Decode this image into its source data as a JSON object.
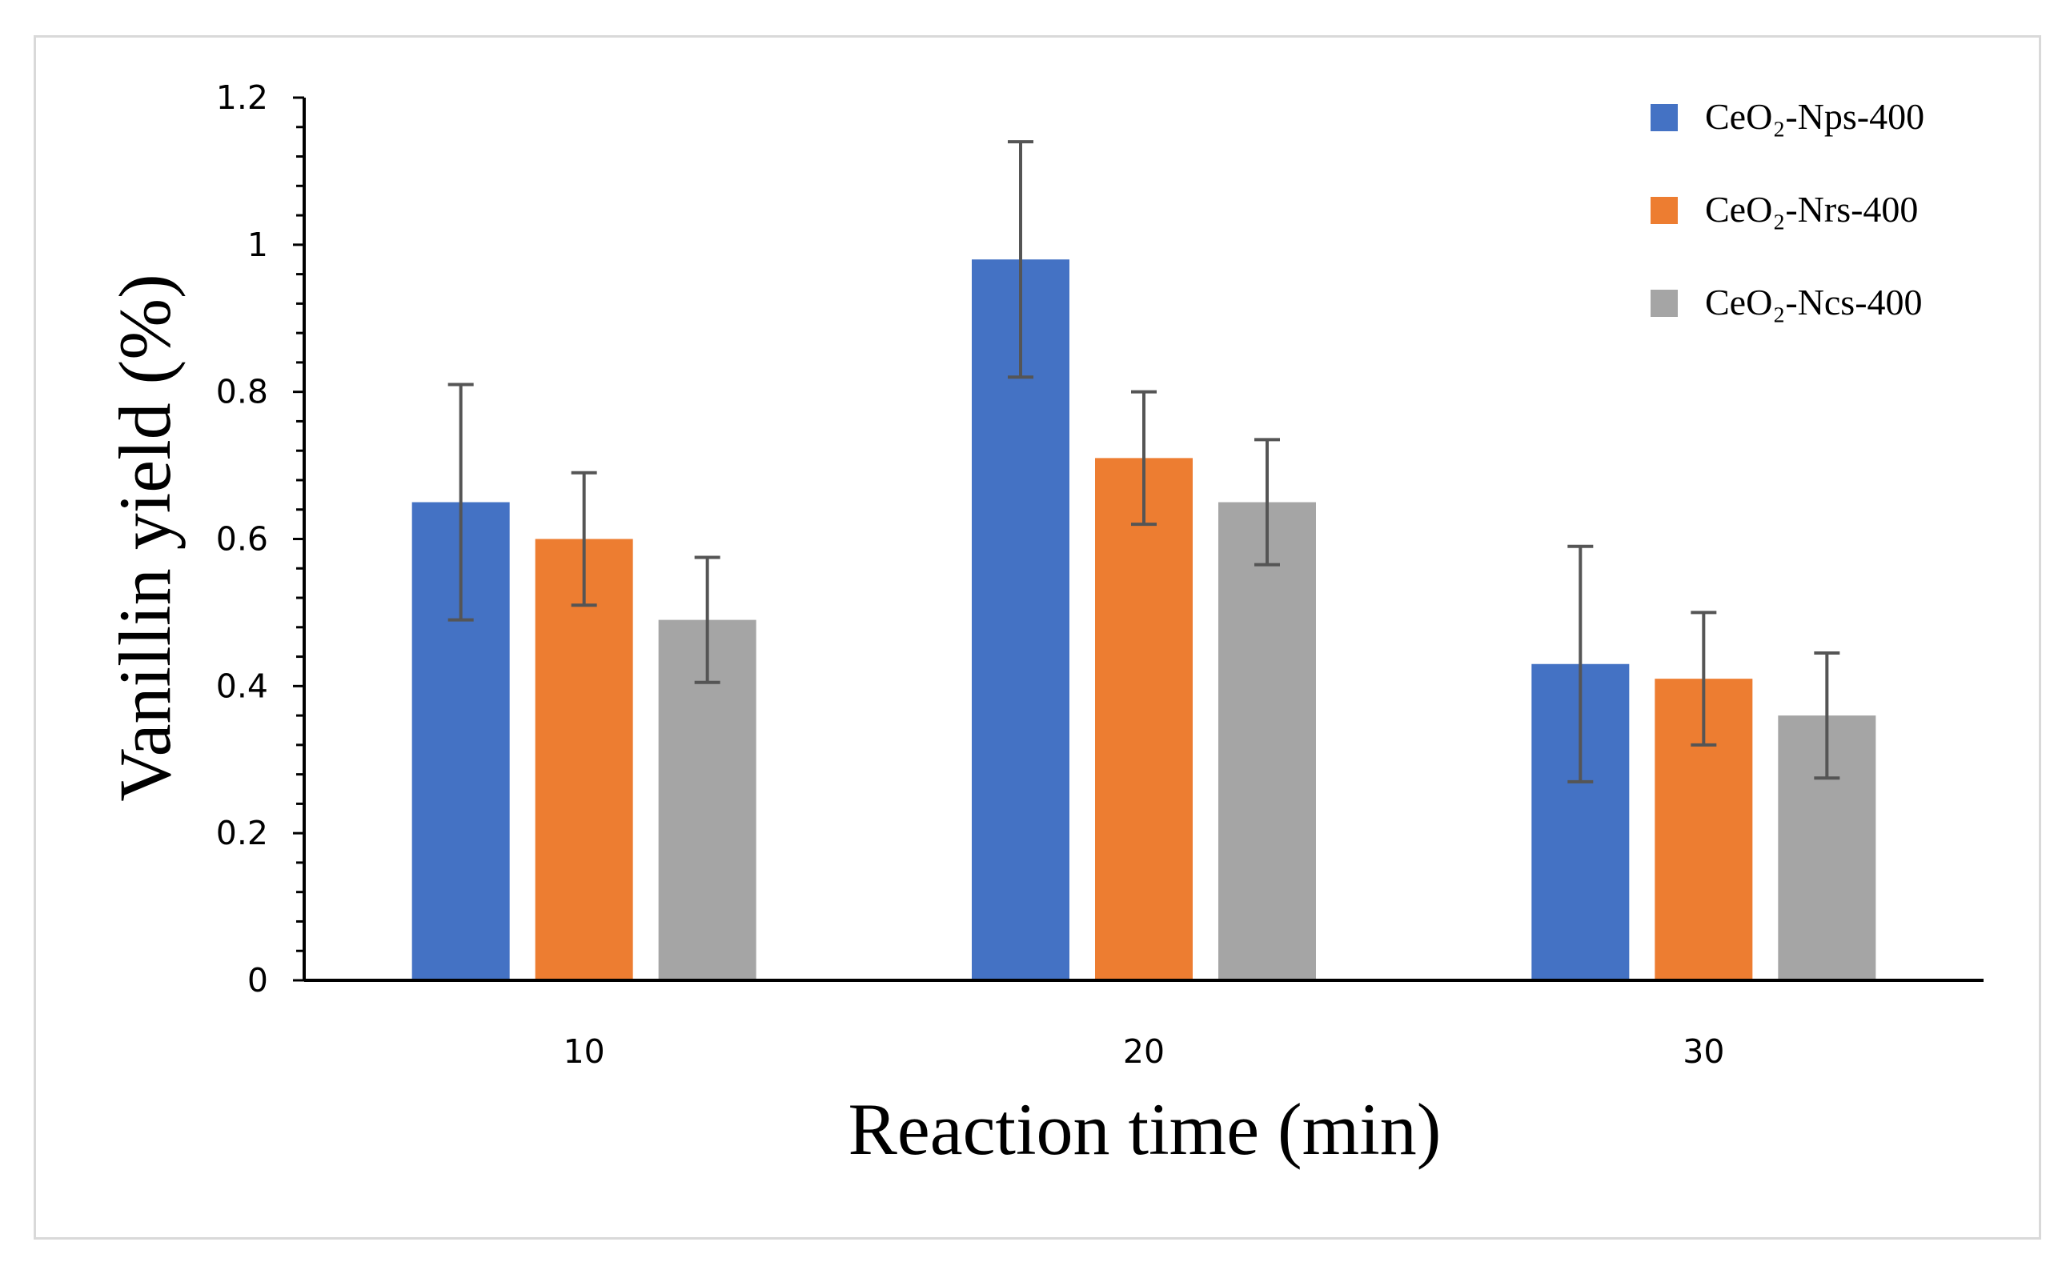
{
  "chart_data": {
    "type": "bar",
    "title": "",
    "xlabel": "Reaction time (min)",
    "ylabel": "Vanillin yield (%)",
    "categories": [
      "10",
      "20",
      "30"
    ],
    "ylim": [
      0,
      1.2
    ],
    "yticks": [
      "0",
      "0.2",
      "0.4",
      "0.6",
      "0.8",
      "1",
      "1.2"
    ],
    "grid": false,
    "legend_position": "top-right",
    "series": [
      {
        "name": "CeO₂-Nps-400",
        "color": "#4472c4",
        "values": [
          0.65,
          0.98,
          0.43
        ],
        "errors": [
          0.16,
          0.16,
          0.16
        ]
      },
      {
        "name": "CeO₂-Nrs-400",
        "color": "#ed7d31",
        "values": [
          0.6,
          0.71,
          0.41
        ],
        "errors": [
          0.09,
          0.09,
          0.09
        ]
      },
      {
        "name": "CeO₂-Ncs-400",
        "color": "#a5a5a5",
        "values": [
          0.49,
          0.65,
          0.36
        ],
        "errors": [
          0.085,
          0.085,
          0.085
        ]
      }
    ]
  }
}
